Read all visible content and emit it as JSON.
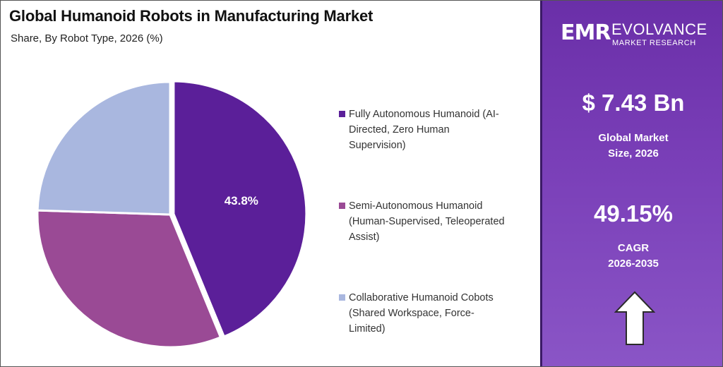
{
  "chart_data": {
    "type": "pie",
    "title": "Global Humanoid Robots in Manufacturing Market",
    "subtitle": "Share, By Robot Type, 2026 (%)",
    "categories": [
      "Fully Autonomous Humanoid (AI-Directed, Zero Human Supervision)",
      "Semi-Autonomous Humanoid (Human-Supervised, Teleoperated Assist)",
      "Collaborative Humanoid Cobots (Shared Workspace, Force-Limited)"
    ],
    "values": [
      43.8,
      31.7,
      24.5
    ],
    "data_labels": [
      "43.8%",
      "",
      ""
    ],
    "colors": [
      "#5b1f99",
      "#9a4a95",
      "#a9b7df"
    ],
    "legend_position": "right"
  },
  "legend": {
    "items": [
      {
        "lines": [
          "Fully Autonomous Humanoid (AI-",
          "Directed, Zero Human",
          "Supervision)"
        ],
        "color": "#5b1f99"
      },
      {
        "lines": [
          "Semi-Autonomous Humanoid",
          "(Human-Supervised, Teleoperated",
          "Assist)"
        ],
        "color": "#9a4a95"
      },
      {
        "lines": [
          "Collaborative Humanoid Cobots",
          "(Shared Workspace, Force-",
          "Limited)"
        ],
        "color": "#a9b7df"
      }
    ]
  },
  "sidebar": {
    "logo_mark": "EMR",
    "logo_name": "EVOLVANCE",
    "logo_sub": "MARKET RESEARCH",
    "market_size": {
      "value": "$ 7.43 Bn",
      "label_line1": "Global Market",
      "label_line2": "Size, 2026"
    },
    "cagr": {
      "value": "49.15%",
      "label_line1": "CAGR",
      "label_line2": "2026-2035"
    },
    "arrow_icon": "up-arrow-icon"
  }
}
